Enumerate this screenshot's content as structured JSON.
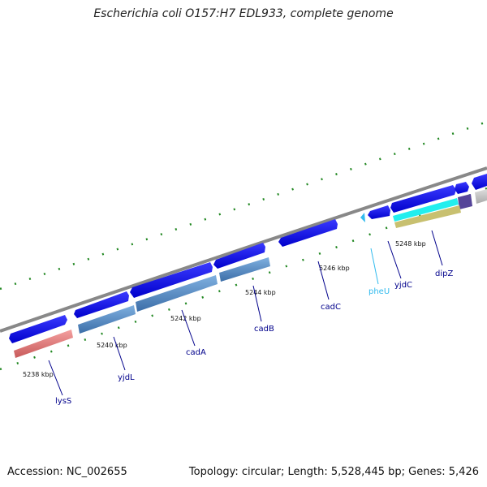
{
  "title": "Escherichia coli O157:H7 EDL933, complete genome",
  "footer": {
    "accession": "Accession: NC_002655",
    "summary": "Topology: circular; Length: 5,528,445 bp; Genes: 5,426"
  },
  "kbp_labels": [
    "5238 kbp",
    "5240 kbp",
    "5242 kbp",
    "5244 kbp",
    "5246 kbp",
    "5248 kbp"
  ],
  "genes": [
    {
      "name": "lysS",
      "color": "#00008b"
    },
    {
      "name": "yjdL",
      "color": "#00008b"
    },
    {
      "name": "cadA",
      "color": "#00008b"
    },
    {
      "name": "cadB",
      "color": "#00008b"
    },
    {
      "name": "cadC",
      "color": "#00008b"
    },
    {
      "name": "pheU",
      "color": "#33bbee"
    },
    {
      "name": "yjdC",
      "color": "#00008b"
    },
    {
      "name": "dipZ",
      "color": "#00008b"
    }
  ],
  "colors": {
    "cds": "#1111ee",
    "backbone": "#888888",
    "tick": "#228822",
    "feature_red": "#e88080",
    "feature_steel": "#5b8fc8",
    "feature_cyan": "#22eeee",
    "feature_khaki": "#c8c070"
  }
}
